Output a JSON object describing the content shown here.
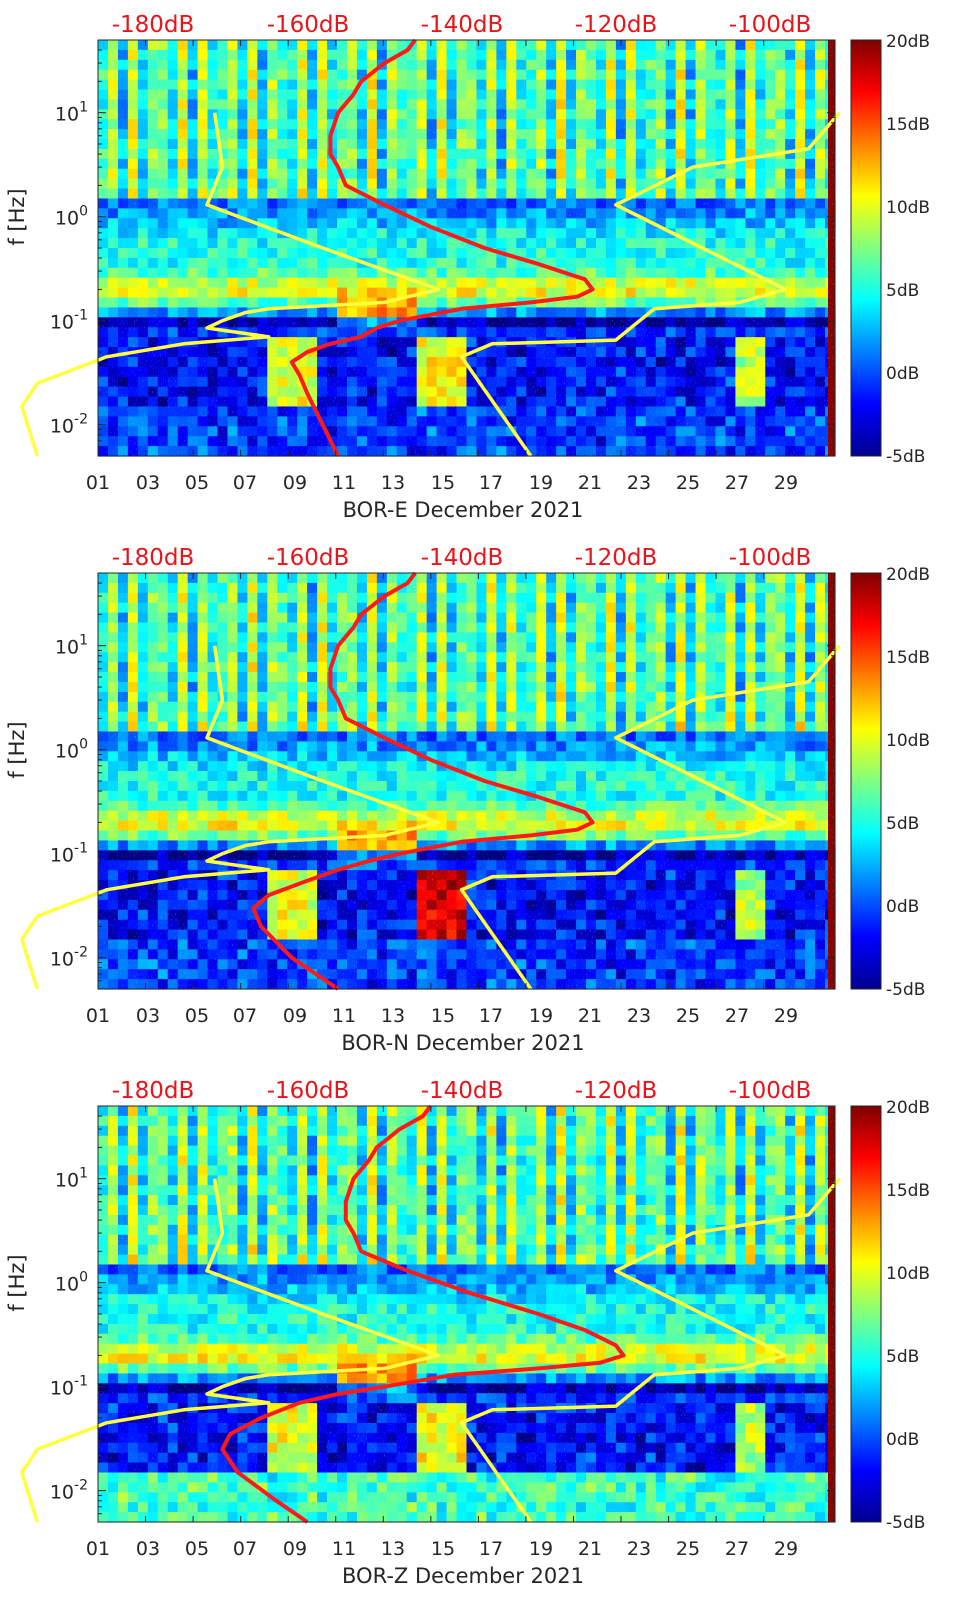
{
  "colors": {
    "background": "#000c8f",
    "pressure_curve_red": "#ff1a1a",
    "noise_model_yellow": "#ffff40",
    "db_axis_text": "#e8141a",
    "axis_text": "#262626"
  },
  "colormap": {
    "name": "jet",
    "stops": [
      "#00008f",
      "#0000ff",
      "#0080ff",
      "#00ffff",
      "#80ff80",
      "#ffff00",
      "#ff8000",
      "#ff0000",
      "#800000"
    ]
  },
  "chart_data": [
    {
      "type": "heatmap",
      "station": "BOR-E",
      "xlabel": "BOR-E December 2021",
      "ylabel": "f [Hz]",
      "x_range": [
        1,
        32
      ],
      "y_range_hz": [
        0.005,
        50
      ],
      "y_scale": "log",
      "x_ticks": [
        "01",
        "03",
        "05",
        "07",
        "09",
        "11",
        "13",
        "15",
        "17",
        "19",
        "21",
        "23",
        "25",
        "27",
        "29"
      ],
      "y_ticks": [
        "10-2",
        "10-1",
        "100",
        "101"
      ],
      "top_axis_ticks": [
        "-180dB",
        "-160dB",
        "-140dB",
        "-120dB",
        "-100dB"
      ],
      "colorbar_ticks": [
        "20dB",
        "15dB",
        "10dB",
        "5dB",
        "0dB",
        "-5dB"
      ],
      "colorbar_range_db": [
        -5,
        20
      ],
      "series": [
        {
          "name": "median PSD (red)",
          "points": [
            [
              -146,
              50
            ],
            [
              -147,
              40
            ],
            [
              -150,
              30
            ],
            [
              -153,
              20
            ],
            [
              -154,
              15
            ],
            [
              -156,
              10
            ],
            [
              -157,
              6
            ],
            [
              -157,
              4
            ],
            [
              -156,
              3
            ],
            [
              -155,
              2
            ],
            [
              -150,
              1.3
            ],
            [
              -144,
              0.8
            ],
            [
              -137,
              0.5
            ],
            [
              -130,
              0.35
            ],
            [
              -124,
              0.25
            ],
            [
              -123,
              0.2
            ],
            [
              -125,
              0.17
            ],
            [
              -131,
              0.15
            ],
            [
              -140,
              0.13
            ],
            [
              -148,
              0.1
            ],
            [
              -151,
              0.085
            ],
            [
              -153,
              0.07
            ],
            [
              -157,
              0.06
            ],
            [
              -160,
              0.05
            ],
            [
              -162,
              0.04
            ],
            [
              -161,
              0.03
            ],
            [
              -160,
              0.02
            ],
            [
              -158,
              0.01
            ],
            [
              -156,
              0.005
            ]
          ]
        },
        {
          "name": "new low noise model (yellow)",
          "points": [
            [
              -172,
              10
            ],
            [
              -171,
              3
            ],
            [
              -173,
              1.3
            ],
            [
              -158,
              0.5
            ],
            [
              -143,
              0.2
            ],
            [
              -150,
              0.15
            ],
            [
              -165,
              0.13
            ],
            [
              -168,
              0.12
            ],
            [
              -171,
              0.1
            ],
            [
              -173,
              0.085
            ],
            [
              -165,
              0.07
            ],
            [
              -176,
              0.06
            ],
            [
              -186,
              0.045
            ],
            [
              -195,
              0.025
            ],
            [
              -197,
              0.015
            ],
            [
              -195,
              0.005
            ]
          ]
        },
        {
          "name": "new high noise model (yellow)",
          "points": [
            [
              -91,
              10
            ],
            [
              -95,
              4.5
            ],
            [
              -110,
              3
            ],
            [
              -120,
              1.3
            ],
            [
              -98,
              0.2
            ],
            [
              -104,
              0.15
            ],
            [
              -115,
              0.13
            ],
            [
              -120,
              0.065
            ],
            [
              -136,
              0.06
            ],
            [
              -140,
              0.045
            ],
            [
              -131,
              0.005
            ]
          ]
        }
      ]
    },
    {
      "type": "heatmap",
      "station": "BOR-N",
      "xlabel": "BOR-N December 2021",
      "ylabel": "f [Hz]",
      "x_range": [
        1,
        32
      ],
      "y_range_hz": [
        0.005,
        50
      ],
      "y_scale": "log",
      "x_ticks": [
        "01",
        "03",
        "05",
        "07",
        "09",
        "11",
        "13",
        "15",
        "17",
        "19",
        "21",
        "23",
        "25",
        "27",
        "29"
      ],
      "y_ticks": [
        "10-2",
        "10-1",
        "100",
        "101"
      ],
      "top_axis_ticks": [
        "-180dB",
        "-160dB",
        "-140dB",
        "-120dB",
        "-100dB"
      ],
      "colorbar_ticks": [
        "20dB",
        "15dB",
        "10dB",
        "5dB",
        "0dB",
        "-5dB"
      ],
      "colorbar_range_db": [
        -5,
        20
      ],
      "series": [
        {
          "name": "median PSD (red)",
          "points": [
            [
              -146,
              50
            ],
            [
              -147,
              40
            ],
            [
              -150,
              30
            ],
            [
              -153,
              20
            ],
            [
              -154,
              15
            ],
            [
              -156,
              10
            ],
            [
              -157,
              6
            ],
            [
              -157,
              4
            ],
            [
              -156,
              3
            ],
            [
              -155,
              2
            ],
            [
              -150,
              1.3
            ],
            [
              -144,
              0.8
            ],
            [
              -137,
              0.5
            ],
            [
              -130,
              0.35
            ],
            [
              -124,
              0.25
            ],
            [
              -123,
              0.2
            ],
            [
              -125,
              0.17
            ],
            [
              -131,
              0.15
            ],
            [
              -140,
              0.13
            ],
            [
              -148,
              0.1
            ],
            [
              -152,
              0.085
            ],
            [
              -156,
              0.07
            ],
            [
              -160,
              0.055
            ],
            [
              -165,
              0.04
            ],
            [
              -167,
              0.03
            ],
            [
              -166,
              0.02
            ],
            [
              -162,
              0.01
            ],
            [
              -156,
              0.005
            ]
          ]
        },
        {
          "name": "new low noise model (yellow)",
          "points": [
            [
              -172,
              10
            ],
            [
              -171,
              3
            ],
            [
              -173,
              1.3
            ],
            [
              -158,
              0.5
            ],
            [
              -143,
              0.2
            ],
            [
              -150,
              0.15
            ],
            [
              -165,
              0.13
            ],
            [
              -168,
              0.12
            ],
            [
              -171,
              0.1
            ],
            [
              -173,
              0.085
            ],
            [
              -165,
              0.07
            ],
            [
              -176,
              0.06
            ],
            [
              -186,
              0.045
            ],
            [
              -195,
              0.025
            ],
            [
              -197,
              0.015
            ],
            [
              -195,
              0.005
            ]
          ]
        },
        {
          "name": "new high noise model (yellow)",
          "points": [
            [
              -91,
              10
            ],
            [
              -95,
              4.5
            ],
            [
              -110,
              3
            ],
            [
              -120,
              1.3
            ],
            [
              -98,
              0.2
            ],
            [
              -104,
              0.15
            ],
            [
              -115,
              0.13
            ],
            [
              -120,
              0.065
            ],
            [
              -136,
              0.06
            ],
            [
              -140,
              0.045
            ],
            [
              -131,
              0.005
            ]
          ]
        }
      ]
    },
    {
      "type": "heatmap",
      "station": "BOR-Z",
      "xlabel": "BOR-Z December 2021",
      "ylabel": "f [Hz]",
      "x_range": [
        1,
        32
      ],
      "y_range_hz": [
        0.005,
        50
      ],
      "y_scale": "log",
      "x_ticks": [
        "01",
        "03",
        "05",
        "07",
        "09",
        "11",
        "13",
        "15",
        "17",
        "19",
        "21",
        "23",
        "25",
        "27",
        "29"
      ],
      "y_ticks": [
        "10-2",
        "10-1",
        "100",
        "101"
      ],
      "top_axis_ticks": [
        "-180dB",
        "-160dB",
        "-140dB",
        "-120dB",
        "-100dB"
      ],
      "colorbar_ticks": [
        "20dB",
        "15dB",
        "10dB",
        "5dB",
        "0dB",
        "-5dB"
      ],
      "colorbar_range_db": [
        -5,
        20
      ],
      "series": [
        {
          "name": "median PSD (red)",
          "points": [
            [
              -144,
              50
            ],
            [
              -145,
              40
            ],
            [
              -148,
              30
            ],
            [
              -151,
              20
            ],
            [
              -152,
              15
            ],
            [
              -154,
              10
            ],
            [
              -155,
              6
            ],
            [
              -155,
              4
            ],
            [
              -154,
              3
            ],
            [
              -153,
              2
            ],
            [
              -147,
              1.3
            ],
            [
              -139,
              0.8
            ],
            [
              -130,
              0.5
            ],
            [
              -124,
              0.35
            ],
            [
              -120,
              0.25
            ],
            [
              -119,
              0.2
            ],
            [
              -122,
              0.17
            ],
            [
              -130,
              0.15
            ],
            [
              -141,
              0.13
            ],
            [
              -150,
              0.1
            ],
            [
              -156,
              0.085
            ],
            [
              -161,
              0.07
            ],
            [
              -166,
              0.05
            ],
            [
              -170,
              0.035
            ],
            [
              -171,
              0.025
            ],
            [
              -169,
              0.015
            ],
            [
              -164,
              0.008
            ],
            [
              -160,
              0.005
            ]
          ]
        },
        {
          "name": "new low noise model (yellow)",
          "points": [
            [
              -172,
              10
            ],
            [
              -171,
              3
            ],
            [
              -173,
              1.3
            ],
            [
              -158,
              0.5
            ],
            [
              -143,
              0.2
            ],
            [
              -150,
              0.15
            ],
            [
              -165,
              0.13
            ],
            [
              -168,
              0.12
            ],
            [
              -171,
              0.1
            ],
            [
              -173,
              0.085
            ],
            [
              -165,
              0.07
            ],
            [
              -176,
              0.06
            ],
            [
              -186,
              0.045
            ],
            [
              -195,
              0.025
            ],
            [
              -197,
              0.015
            ],
            [
              -195,
              0.005
            ]
          ]
        },
        {
          "name": "new high noise model (yellow)",
          "points": [
            [
              -91,
              10
            ],
            [
              -95,
              4.5
            ],
            [
              -110,
              3
            ],
            [
              -120,
              1.3
            ],
            [
              -98,
              0.2
            ],
            [
              -104,
              0.15
            ],
            [
              -115,
              0.13
            ],
            [
              -120,
              0.065
            ],
            [
              -136,
              0.06
            ],
            [
              -140,
              0.045
            ],
            [
              -131,
              0.005
            ]
          ]
        }
      ]
    }
  ]
}
